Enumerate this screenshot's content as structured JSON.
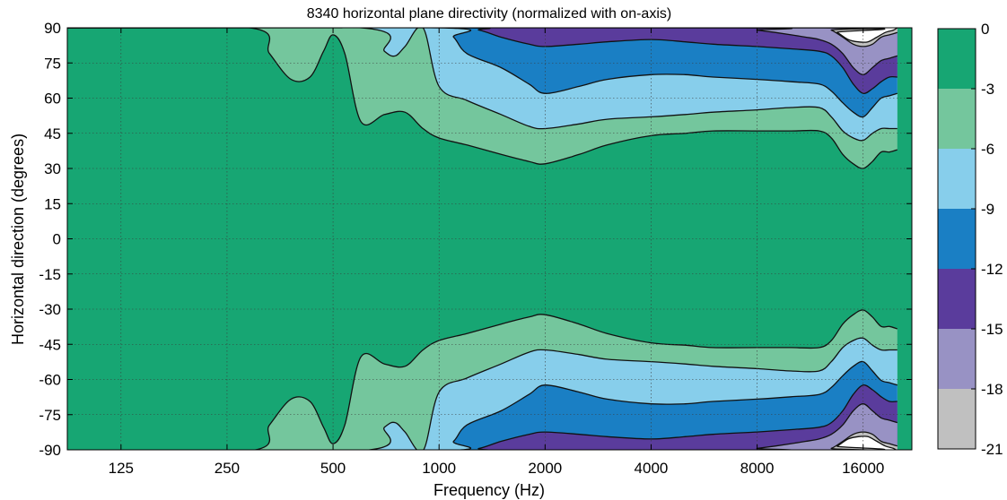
{
  "chart_data": {
    "type": "heatmap",
    "title": "8340 horizontal plane directivity (normalized with on-axis)",
    "xlabel": "Frequency (Hz)",
    "ylabel": "Horizontal direction (degrees)",
    "x_scale": "log",
    "xlim": [
      88,
      22000
    ],
    "ylim": [
      -90,
      90
    ],
    "x_ticks": [
      125,
      250,
      500,
      1000,
      2000,
      4000,
      8000,
      16000
    ],
    "x_tick_labels": [
      "125",
      "250",
      "500",
      "1000",
      "2000",
      "4000",
      "8000",
      "16000"
    ],
    "y_ticks": [
      90,
      75,
      60,
      45,
      30,
      15,
      0,
      -15,
      -30,
      -45,
      -60,
      -75,
      -90
    ],
    "y_tick_labels": [
      "90",
      "75",
      "60",
      "45",
      "30",
      "15",
      "0",
      "-15",
      "-30",
      "-45",
      "-60",
      "-75",
      "-90"
    ],
    "grid": true,
    "colorbar": {
      "tick_labels": [
        "0",
        "-3",
        "-6",
        "-9",
        "-12",
        "-15",
        "-18",
        "-21"
      ],
      "bands": [
        {
          "from_db": 0,
          "to_db": -3,
          "color": "#17a673"
        },
        {
          "from_db": -3,
          "to_db": -6,
          "color": "#74c69d"
        },
        {
          "from_db": -6,
          "to_db": -9,
          "color": "#87ceeb"
        },
        {
          "from_db": -9,
          "to_db": -12,
          "color": "#1a7fc4"
        },
        {
          "from_db": -12,
          "to_db": -15,
          "color": "#5a3c9c"
        },
        {
          "from_db": -15,
          "to_db": -18,
          "color": "#9892c4"
        },
        {
          "from_db": -18,
          "to_db": -21,
          "color": "#c0c0c0"
        }
      ]
    },
    "contours_deg": [
      {
        "level_db": -3,
        "fill": "#74c69d",
        "freq_hz": [
          88,
          290,
          330,
          380,
          430,
          470,
          500,
          540,
          600,
          700,
          800,
          900,
          1000,
          1200,
          1500,
          1800,
          2000,
          2500,
          3000,
          4000,
          5000,
          6000,
          8000,
          10000,
          12000,
          13000,
          14000,
          15000,
          16000,
          17000,
          18000,
          19000,
          20000
        ],
        "angle_deg": [
          90,
          90,
          79,
          68,
          69,
          80,
          87,
          79,
          50,
          53,
          54,
          47,
          43,
          40,
          36,
          33,
          32,
          36,
          40,
          44,
          45,
          46,
          46,
          46,
          46,
          43,
          36,
          32,
          30,
          33,
          37,
          37,
          38
        ]
      },
      {
        "level_db": -6,
        "fill": "#87ceeb",
        "freq_hz": [
          88,
          600,
          700,
          750,
          800,
          900,
          1000,
          1200,
          1500,
          1800,
          2000,
          2500,
          3000,
          4000,
          5000,
          6000,
          8000,
          10000,
          12000,
          13000,
          14000,
          15000,
          16000,
          17000,
          18000,
          19000,
          20000
        ],
        "angle_deg": [
          90,
          90,
          80,
          78,
          82,
          90,
          65,
          59,
          53,
          48,
          47,
          49,
          51,
          52,
          53,
          54,
          55,
          56,
          56,
          52,
          46,
          43,
          42,
          45,
          47,
          47,
          47
        ]
      },
      {
        "level_db": -9,
        "fill": "#1a7fc4",
        "freq_hz": [
          88,
          1000,
          1100,
          1200,
          1500,
          1800,
          2000,
          2500,
          3000,
          4000,
          5000,
          6000,
          8000,
          10000,
          12000,
          13000,
          14000,
          15000,
          16000,
          17000,
          18000,
          19000,
          20000
        ],
        "angle_deg": [
          90,
          90,
          86,
          79,
          73,
          66,
          62,
          65,
          68,
          70,
          70,
          69,
          68,
          67,
          66,
          63,
          58,
          54,
          52,
          56,
          60,
          61,
          62
        ]
      },
      {
        "level_db": -12,
        "fill": "#5a3c9c",
        "freq_hz": [
          88,
          1100,
          1300,
          1500,
          1800,
          2000,
          2500,
          3000,
          4000,
          5000,
          6000,
          8000,
          10000,
          12000,
          13000,
          14000,
          15000,
          16000,
          17000,
          18000,
          19000,
          20000
        ],
        "angle_deg": [
          90,
          90,
          89,
          86,
          83,
          82,
          83,
          84,
          85,
          84,
          83,
          82,
          81,
          80,
          78,
          73,
          66,
          62,
          64,
          67,
          69,
          69
        ]
      },
      {
        "level_db": -15,
        "fill": "#9892c4",
        "freq_hz": [
          88,
          7000,
          8000,
          9000,
          10000,
          11000,
          12000,
          13000,
          14000,
          15000,
          16000,
          17000,
          18000,
          19000,
          20000
        ],
        "angle_deg": [
          90,
          90,
          89,
          88,
          87,
          86,
          85,
          83,
          79,
          73,
          70,
          73,
          76,
          77,
          78
        ]
      },
      {
        "level_db": -18,
        "fill": "#c0c0c0",
        "freq_hz": [
          88,
          12000,
          13000,
          14000,
          15000,
          16000,
          17000,
          18000,
          19000,
          20000
        ],
        "angle_deg": [
          90,
          90,
          89,
          86,
          83,
          82,
          83,
          86,
          87,
          88
        ]
      }
    ],
    "white_region_deg": {
      "freq_hz": [
        88,
        12500,
        13500,
        14500,
        15500,
        16500,
        17500,
        18500,
        19500,
        20000
      ],
      "angle_deg": [
        90,
        90,
        88,
        85,
        84,
        84,
        86,
        88,
        89,
        90
      ]
    }
  }
}
